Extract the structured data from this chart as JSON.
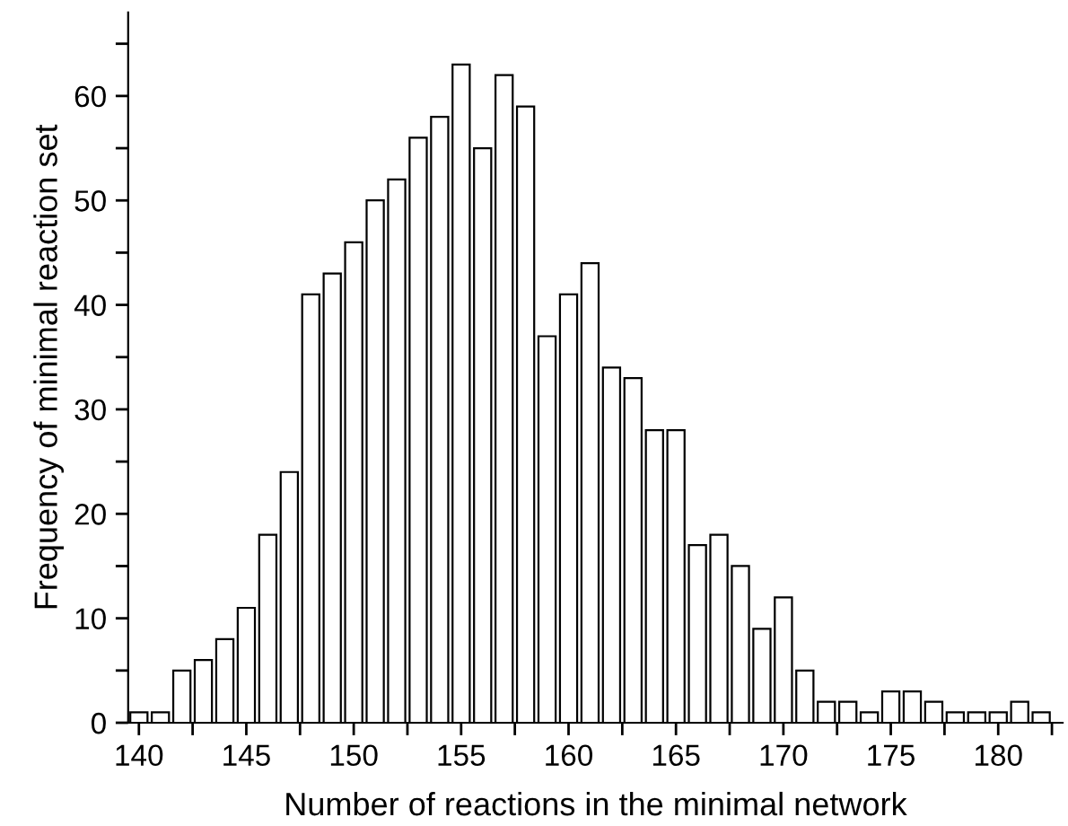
{
  "chart_data": {
    "type": "bar",
    "xlabel": "Number of reactions in the minimal network",
    "ylabel": "Frequency of minimal reaction set",
    "x": [
      140,
      141,
      142,
      143,
      144,
      145,
      146,
      147,
      148,
      149,
      150,
      151,
      152,
      153,
      154,
      155,
      156,
      157,
      158,
      159,
      160,
      161,
      162,
      163,
      164,
      165,
      166,
      167,
      168,
      169,
      170,
      171,
      172,
      173,
      174,
      175,
      176,
      177,
      178,
      179,
      180,
      181,
      182
    ],
    "series": [
      {
        "color": "#ffffff",
        "values": [
          1,
          1,
          5,
          6,
          8,
          11,
          18,
          24,
          41,
          43,
          46,
          50,
          52,
          56,
          58,
          63,
          55,
          62,
          59,
          37,
          41,
          44,
          34,
          33,
          28,
          28,
          17,
          18,
          15,
          9,
          12,
          5,
          2,
          2,
          1,
          3,
          3,
          2,
          1,
          1,
          1,
          2,
          1
        ]
      }
    ],
    "xlim": [
      139.5,
      183
    ],
    "xticks": [
      140,
      {
        "value": 142.5,
        "label": null
      },
      145,
      {
        "value": 147.5,
        "label": null
      },
      150,
      {
        "value": 152.5,
        "label": null
      },
      155,
      {
        "value": 157.5,
        "label": null
      },
      160,
      {
        "value": 162.5,
        "label": null
      },
      165,
      {
        "value": 167.5,
        "label": null
      },
      170,
      {
        "value": 172.5,
        "label": null
      },
      175,
      {
        "value": 177.5,
        "label": null
      },
      180,
      {
        "value": 182.5,
        "label": null
      }
    ],
    "ylim": [
      0,
      68
    ],
    "yticks": [
      0,
      {
        "value": 5,
        "label": null
      },
      10,
      {
        "value": 15,
        "label": null
      },
      20,
      {
        "value": 25,
        "label": null
      },
      30,
      {
        "value": 35,
        "label": null
      },
      40,
      {
        "value": 45,
        "label": null
      },
      50,
      {
        "value": 55,
        "label": null
      },
      60,
      {
        "value": 65,
        "label": null
      }
    ],
    "grid": false,
    "legend": false
  }
}
